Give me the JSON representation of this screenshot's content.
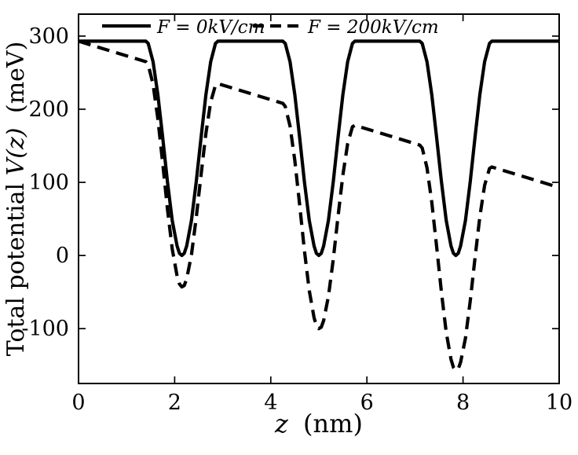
{
  "accent_color": "#000000",
  "background_color": "#ffffff",
  "chart_data": {
    "type": "line",
    "title": "",
    "xlabel": {
      "math": "z",
      "suffix": "(nm)"
    },
    "ylabel": {
      "prefix": "Total potential ",
      "math": "V(z)",
      "suffix": "(meV)"
    },
    "xlim": [
      0,
      10
    ],
    "ylim": [
      -175,
      330
    ],
    "xticks": [
      0,
      2,
      4,
      6,
      8,
      10
    ],
    "yticks": [
      -100,
      0,
      100,
      200,
      300
    ],
    "grid": false,
    "legend_position": "top-inside",
    "series": [
      {
        "name": "F = 0kV/cm",
        "style": "solid",
        "color": "#000000",
        "points": [
          [
            0,
            293
          ],
          [
            0.7,
            293
          ],
          [
            1.4,
            293
          ],
          [
            1.45,
            290
          ],
          [
            1.55,
            265
          ],
          [
            1.65,
            220
          ],
          [
            1.75,
            162
          ],
          [
            1.85,
            101
          ],
          [
            1.95,
            48
          ],
          [
            2.05,
            13
          ],
          [
            2.1,
            3
          ],
          [
            2.15,
            0
          ],
          [
            2.2,
            3
          ],
          [
            2.25,
            13
          ],
          [
            2.35,
            48
          ],
          [
            2.45,
            101
          ],
          [
            2.55,
            162
          ],
          [
            2.65,
            220
          ],
          [
            2.75,
            265
          ],
          [
            2.85,
            290
          ],
          [
            2.9,
            293
          ],
          [
            3.6,
            293
          ],
          [
            4.25,
            293
          ],
          [
            4.3,
            290
          ],
          [
            4.4,
            265
          ],
          [
            4.5,
            220
          ],
          [
            4.6,
            162
          ],
          [
            4.7,
            101
          ],
          [
            4.8,
            48
          ],
          [
            4.9,
            13
          ],
          [
            4.95,
            3
          ],
          [
            5.0,
            0
          ],
          [
            5.05,
            3
          ],
          [
            5.1,
            13
          ],
          [
            5.2,
            48
          ],
          [
            5.3,
            101
          ],
          [
            5.4,
            162
          ],
          [
            5.5,
            220
          ],
          [
            5.6,
            265
          ],
          [
            5.7,
            290
          ],
          [
            5.75,
            293
          ],
          [
            6.45,
            293
          ],
          [
            7.1,
            293
          ],
          [
            7.15,
            290
          ],
          [
            7.25,
            265
          ],
          [
            7.35,
            220
          ],
          [
            7.45,
            162
          ],
          [
            7.55,
            101
          ],
          [
            7.65,
            48
          ],
          [
            7.75,
            13
          ],
          [
            7.8,
            3
          ],
          [
            7.85,
            0
          ],
          [
            7.9,
            3
          ],
          [
            7.95,
            13
          ],
          [
            8.05,
            48
          ],
          [
            8.15,
            101
          ],
          [
            8.25,
            162
          ],
          [
            8.35,
            220
          ],
          [
            8.45,
            265
          ],
          [
            8.55,
            290
          ],
          [
            8.6,
            293
          ],
          [
            9.3,
            293
          ],
          [
            10,
            293
          ]
        ]
      },
      {
        "name": "F = 200kV/cm",
        "style": "dashed",
        "color": "#000000",
        "points": [
          [
            0,
            293
          ],
          [
            0.7,
            279
          ],
          [
            1.4,
            265
          ],
          [
            1.45,
            261
          ],
          [
            1.55,
            234
          ],
          [
            1.65,
            187
          ],
          [
            1.75,
            127
          ],
          [
            1.85,
            64
          ],
          [
            1.95,
            9
          ],
          [
            2.05,
            -28
          ],
          [
            2.1,
            -39
          ],
          [
            2.15,
            -43
          ],
          [
            2.2,
            -41
          ],
          [
            2.25,
            -32
          ],
          [
            2.35,
            1
          ],
          [
            2.45,
            52
          ],
          [
            2.55,
            111
          ],
          [
            2.65,
            167
          ],
          [
            2.75,
            210
          ],
          [
            2.85,
            233
          ],
          [
            2.9,
            235
          ],
          [
            3.6,
            221
          ],
          [
            4.25,
            208
          ],
          [
            4.3,
            204
          ],
          [
            4.4,
            177
          ],
          [
            4.5,
            130
          ],
          [
            4.6,
            70
          ],
          [
            4.7,
            7
          ],
          [
            4.8,
            -48
          ],
          [
            4.9,
            -85
          ],
          [
            4.95,
            -96
          ],
          [
            5.0,
            -100
          ],
          [
            5.05,
            -98
          ],
          [
            5.1,
            -89
          ],
          [
            5.2,
            -56
          ],
          [
            5.3,
            -5
          ],
          [
            5.4,
            54
          ],
          [
            5.5,
            110
          ],
          [
            5.6,
            153
          ],
          [
            5.7,
            176
          ],
          [
            5.75,
            178
          ],
          [
            6.45,
            164
          ],
          [
            7.1,
            151
          ],
          [
            7.15,
            147
          ],
          [
            7.25,
            120
          ],
          [
            7.35,
            73
          ],
          [
            7.45,
            13
          ],
          [
            7.55,
            -50
          ],
          [
            7.65,
            -105
          ],
          [
            7.75,
            -142
          ],
          [
            7.8,
            -153
          ],
          [
            7.85,
            -157
          ],
          [
            7.9,
            -155
          ],
          [
            7.95,
            -146
          ],
          [
            8.05,
            -113
          ],
          [
            8.15,
            -62
          ],
          [
            8.25,
            -3
          ],
          [
            8.35,
            53
          ],
          [
            8.45,
            96
          ],
          [
            8.55,
            119
          ],
          [
            8.6,
            121
          ],
          [
            9.3,
            107
          ],
          [
            10,
            93
          ]
        ]
      }
    ]
  }
}
